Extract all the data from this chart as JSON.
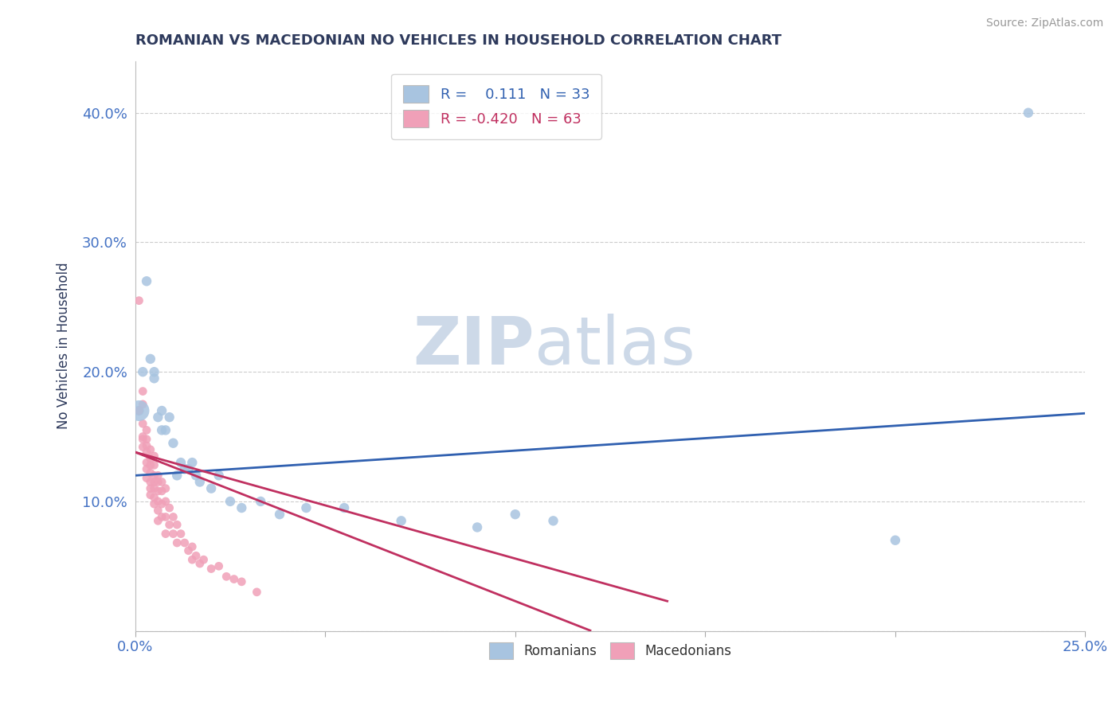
{
  "title": "ROMANIAN VS MACEDONIAN NO VEHICLES IN HOUSEHOLD CORRELATION CHART",
  "source": "Source: ZipAtlas.com",
  "ylabel": "No Vehicles in Household",
  "xlim": [
    0.0,
    0.25
  ],
  "ylim": [
    0.0,
    0.44
  ],
  "xticks": [
    0.0,
    0.05,
    0.1,
    0.15,
    0.2,
    0.25
  ],
  "xticklabels": [
    "0.0%",
    "",
    "",
    "",
    "",
    "25.0%"
  ],
  "yticks": [
    0.0,
    0.1,
    0.2,
    0.3,
    0.4
  ],
  "yticklabels": [
    "",
    "10.0%",
    "20.0%",
    "30.0%",
    "40.0%"
  ],
  "romanian_R": 0.111,
  "romanian_N": 33,
  "macedonian_R": -0.42,
  "macedonian_N": 63,
  "romanian_color": "#a8c4e0",
  "macedonian_color": "#f0a0b8",
  "romanian_line_color": "#3060b0",
  "macedonian_line_color": "#c03060",
  "title_color": "#2e3a5c",
  "source_color": "#999999",
  "watermark_color": "#cdd9e8",
  "background_color": "#ffffff",
  "grid_color": "#cccccc",
  "romani_scatter": [
    [
      0.001,
      0.17
    ],
    [
      0.002,
      0.2
    ],
    [
      0.003,
      0.27
    ],
    [
      0.004,
      0.21
    ],
    [
      0.005,
      0.195
    ],
    [
      0.005,
      0.2
    ],
    [
      0.006,
      0.165
    ],
    [
      0.007,
      0.17
    ],
    [
      0.007,
      0.155
    ],
    [
      0.008,
      0.155
    ],
    [
      0.009,
      0.165
    ],
    [
      0.01,
      0.145
    ],
    [
      0.011,
      0.12
    ],
    [
      0.012,
      0.13
    ],
    [
      0.013,
      0.125
    ],
    [
      0.014,
      0.125
    ],
    [
      0.015,
      0.13
    ],
    [
      0.016,
      0.12
    ],
    [
      0.017,
      0.115
    ],
    [
      0.02,
      0.11
    ],
    [
      0.022,
      0.12
    ],
    [
      0.025,
      0.1
    ],
    [
      0.028,
      0.095
    ],
    [
      0.033,
      0.1
    ],
    [
      0.038,
      0.09
    ],
    [
      0.045,
      0.095
    ],
    [
      0.055,
      0.095
    ],
    [
      0.07,
      0.085
    ],
    [
      0.09,
      0.08
    ],
    [
      0.1,
      0.09
    ],
    [
      0.11,
      0.085
    ],
    [
      0.2,
      0.07
    ],
    [
      0.235,
      0.4
    ]
  ],
  "macedonian_scatter": [
    [
      0.001,
      0.255
    ],
    [
      0.001,
      0.17
    ],
    [
      0.002,
      0.185
    ],
    [
      0.002,
      0.175
    ],
    [
      0.002,
      0.16
    ],
    [
      0.002,
      0.15
    ],
    [
      0.002,
      0.148
    ],
    [
      0.002,
      0.142
    ],
    [
      0.003,
      0.155
    ],
    [
      0.003,
      0.148
    ],
    [
      0.003,
      0.143
    ],
    [
      0.003,
      0.138
    ],
    [
      0.003,
      0.13
    ],
    [
      0.003,
      0.125
    ],
    [
      0.003,
      0.118
    ],
    [
      0.004,
      0.14
    ],
    [
      0.004,
      0.133
    ],
    [
      0.004,
      0.128
    ],
    [
      0.004,
      0.122
    ],
    [
      0.004,
      0.115
    ],
    [
      0.004,
      0.11
    ],
    [
      0.004,
      0.105
    ],
    [
      0.005,
      0.135
    ],
    [
      0.005,
      0.128
    ],
    [
      0.005,
      0.12
    ],
    [
      0.005,
      0.115
    ],
    [
      0.005,
      0.11
    ],
    [
      0.005,
      0.103
    ],
    [
      0.005,
      0.098
    ],
    [
      0.006,
      0.12
    ],
    [
      0.006,
      0.115
    ],
    [
      0.006,
      0.108
    ],
    [
      0.006,
      0.1
    ],
    [
      0.006,
      0.093
    ],
    [
      0.006,
      0.085
    ],
    [
      0.007,
      0.115
    ],
    [
      0.007,
      0.108
    ],
    [
      0.007,
      0.098
    ],
    [
      0.007,
      0.088
    ],
    [
      0.008,
      0.11
    ],
    [
      0.008,
      0.1
    ],
    [
      0.008,
      0.088
    ],
    [
      0.008,
      0.075
    ],
    [
      0.009,
      0.095
    ],
    [
      0.009,
      0.082
    ],
    [
      0.01,
      0.088
    ],
    [
      0.01,
      0.075
    ],
    [
      0.011,
      0.082
    ],
    [
      0.011,
      0.068
    ],
    [
      0.012,
      0.075
    ],
    [
      0.013,
      0.068
    ],
    [
      0.014,
      0.062
    ],
    [
      0.015,
      0.065
    ],
    [
      0.015,
      0.055
    ],
    [
      0.016,
      0.058
    ],
    [
      0.017,
      0.052
    ],
    [
      0.018,
      0.055
    ],
    [
      0.02,
      0.048
    ],
    [
      0.022,
      0.05
    ],
    [
      0.024,
      0.042
    ],
    [
      0.026,
      0.04
    ],
    [
      0.028,
      0.038
    ],
    [
      0.032,
      0.03
    ]
  ],
  "romanian_line": [
    [
      0.0,
      0.12
    ],
    [
      0.25,
      0.168
    ]
  ],
  "macedonian_line": [
    [
      0.0,
      0.138
    ],
    [
      0.12,
      0.0
    ]
  ]
}
